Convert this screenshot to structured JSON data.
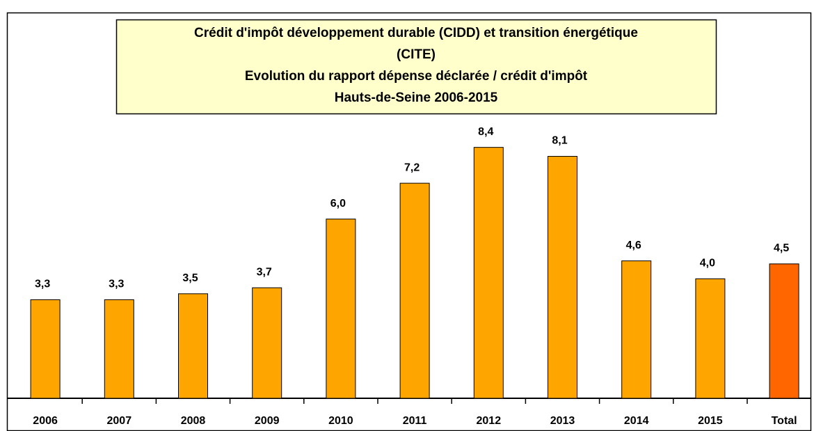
{
  "chart_data": {
    "type": "bar",
    "title": [
      "Crédit d'impôt développement durable (CIDD) et transition énergétique",
      "(CITE)",
      "Evolution du rapport dépense déclarée / crédit d'impôt",
      "Hauts-de-Seine 2006-2015"
    ],
    "categories": [
      "2006",
      "2007",
      "2008",
      "2009",
      "2010",
      "2011",
      "2012",
      "2013",
      "2014",
      "2015",
      "Total"
    ],
    "values": [
      3.3,
      3.3,
      3.5,
      3.7,
      6.0,
      7.2,
      8.4,
      8.1,
      4.6,
      4.0,
      4.5
    ],
    "value_labels": [
      "3,3",
      "3,3",
      "3,5",
      "3,7",
      "6,0",
      "7,2",
      "8,4",
      "8,1",
      "4,6",
      "4,0",
      "4,5"
    ],
    "colors": [
      "#ffa500",
      "#ffa500",
      "#ffa500",
      "#ffa500",
      "#ffa500",
      "#ffa500",
      "#ffa500",
      "#ffa500",
      "#ffa500",
      "#ffa500",
      "#ff6600"
    ],
    "ylim": [
      0,
      10
    ]
  }
}
